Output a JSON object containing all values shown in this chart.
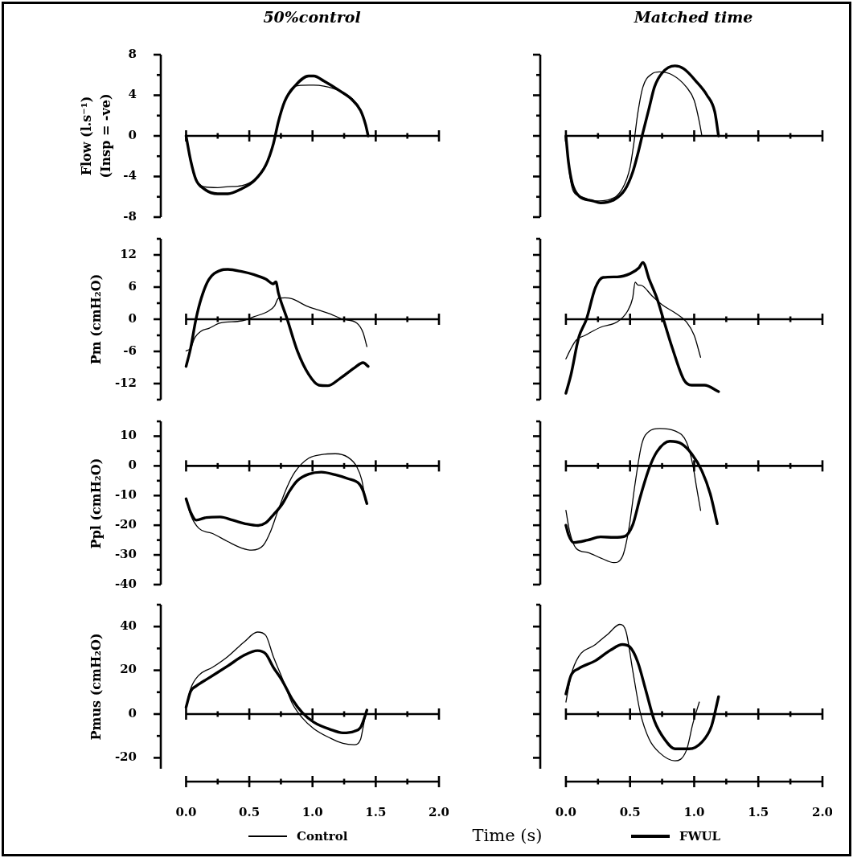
{
  "chart_data": [
    {
      "type": "line",
      "title": "50%control",
      "ylabel": "Flow (l.s⁻¹)\n(Insp = -ve)",
      "xlim": [
        -0.2,
        2
      ],
      "xticks": [
        0,
        {
          "value": 0.25,
          "label": null
        },
        0.5,
        {
          "value": 0.75,
          "label": null
        },
        1,
        {
          "value": 1.25,
          "label": null
        },
        1.5,
        {
          "value": 1.75,
          "label": null
        },
        2
      ],
      "ylim": [
        -8,
        8
      ],
      "yticks": [
        -8,
        {
          "value": -6,
          "label": null
        },
        -4,
        {
          "value": -2,
          "label": null
        },
        0,
        {
          "value": 2,
          "label": null
        },
        4,
        {
          "value": 6,
          "label": null
        },
        8
      ],
      "tick_labels": "y",
      "series": [
        {
          "color": "#000000",
          "x": [
            0,
            0.036,
            0.078,
            0.14,
            0.25,
            0.33,
            0.44,
            0.54,
            0.63,
            0.69,
            0.73,
            0.78,
            0.86,
            0.97,
            1.01,
            1.09,
            1.22,
            1.31,
            1.38,
            1.42,
            1.44
          ],
          "values": [
            0,
            -2.3,
            -4.2,
            -5.0,
            -5.1,
            -5.0,
            -4.9,
            -4.3,
            -2.8,
            -0.7,
            1.5,
            3.5,
            4.9,
            5.0,
            5.0,
            4.9,
            4.4,
            3.7,
            2.6,
            1.2,
            0
          ]
        },
        {
          "color": "#000000",
          "x": [
            0,
            0.036,
            0.078,
            0.14,
            0.25,
            0.33,
            0.44,
            0.54,
            0.63,
            0.69,
            0.73,
            0.78,
            0.86,
            0.97,
            1.01,
            1.09,
            1.22,
            1.31,
            1.38,
            1.42,
            1.44
          ],
          "values": [
            0,
            -2.4,
            -4.3,
            -5.2,
            -5.7,
            -5.7,
            -5.2,
            -4.4,
            -2.9,
            -0.8,
            1.4,
            3.4,
            4.9,
            5.9,
            5.9,
            5.4,
            4.4,
            3.6,
            2.5,
            1.1,
            0
          ]
        }
      ]
    },
    {
      "type": "line",
      "title": "Matched time",
      "xlim": [
        -0.2,
        2
      ],
      "xticks": [
        0,
        {
          "value": 0.25,
          "label": null
        },
        0.5,
        {
          "value": 0.75,
          "label": null
        },
        1,
        {
          "value": 1.25,
          "label": null
        },
        1.5,
        {
          "value": 1.75,
          "label": null
        },
        2
      ],
      "ylim": [
        -8,
        8
      ],
      "yticks": [
        -8,
        {
          "value": -6,
          "label": null
        },
        -4,
        {
          "value": -2,
          "label": null
        },
        0,
        {
          "value": 2,
          "label": null
        },
        4,
        {
          "value": 6,
          "label": null
        },
        8
      ],
      "tick_labels": false,
      "series": [
        {
          "color": "#000000",
          "x": [
            0,
            0.03,
            0.06,
            0.125,
            0.23,
            0.33,
            0.44,
            0.5,
            0.53,
            0.56,
            0.6,
            0.67,
            0.73,
            0.83,
            0.94,
            1.0,
            1.04,
            1.06
          ],
          "values": [
            0,
            -3.9,
            -5.5,
            -6.0,
            -6.4,
            -6.3,
            -5.2,
            -3.1,
            -0.7,
            2.2,
            4.8,
            6.1,
            6.3,
            6.0,
            4.8,
            3.5,
            1.4,
            0
          ]
        },
        {
          "color": "#000000",
          "x": [
            0,
            0.02,
            0.05,
            0.1,
            0.21,
            0.27,
            0.375,
            0.46,
            0.52,
            0.56,
            0.6,
            0.65,
            0.69,
            0.75,
            0.85,
            0.92,
            1.02,
            1.1,
            1.16,
            1.19
          ],
          "values": [
            0,
            -2.6,
            -4.7,
            -5.9,
            -6.4,
            -6.6,
            -6.3,
            -5.3,
            -3.6,
            -1.8,
            0.3,
            2.8,
            4.8,
            6.2,
            6.9,
            6.6,
            5.3,
            4.0,
            2.4,
            0
          ]
        }
      ]
    },
    {
      "type": "line",
      "ylabel": "Pm (cmH₂O)",
      "xlim": [
        -0.2,
        2
      ],
      "xticks": [
        0,
        {
          "value": 0.25,
          "label": null
        },
        0.5,
        {
          "value": 0.75,
          "label": null
        },
        1,
        {
          "value": 1.25,
          "label": null
        },
        1.5,
        {
          "value": 1.75,
          "label": null
        },
        2
      ],
      "ylim": [
        -15,
        15
      ],
      "yticks": [
        {
          "value": -15,
          "label": null
        },
        -12,
        {
          "value": -9,
          "label": null
        },
        -6,
        {
          "value": -3,
          "label": null
        },
        0,
        {
          "value": 3,
          "label": null
        },
        6,
        {
          "value": 9,
          "label": null
        },
        12,
        {
          "value": 15,
          "label": null
        }
      ],
      "tick_labels": "y",
      "series": [
        {
          "color": "#000000",
          "x": [
            0,
            0.036,
            0.07,
            0.12,
            0.18,
            0.27,
            0.44,
            0.54,
            0.65,
            0.7,
            0.73,
            0.78,
            0.84,
            0.95,
            1.05,
            1.14,
            1.24,
            1.35,
            1.4,
            1.43
          ],
          "values": [
            -5.9,
            -5.4,
            -3.4,
            -2.2,
            -1.7,
            -0.7,
            -0.3,
            0.5,
            1.5,
            2.5,
            3.9,
            4.0,
            3.8,
            2.5,
            1.7,
            1.0,
            0,
            -0.7,
            -2.5,
            -5.1
          ]
        },
        {
          "color": "#000000",
          "x": [
            0,
            0.036,
            0.078,
            0.12,
            0.18,
            0.27,
            0.33,
            0.44,
            0.54,
            0.63,
            0.69,
            0.71,
            0.73,
            0.8,
            0.88,
            0.97,
            1.05,
            1.12,
            1.22,
            1.33,
            1.4,
            1.44
          ],
          "values": [
            -8.8,
            -5.4,
            0,
            3.9,
            7.4,
            9.1,
            9.3,
            8.9,
            8.3,
            7.5,
            6.6,
            7.0,
            4.9,
            0,
            -5.9,
            -10.3,
            -12.3,
            -12.4,
            -11,
            -9.1,
            -8.1,
            -8.8
          ]
        }
      ]
    },
    {
      "type": "line",
      "xlim": [
        -0.2,
        2
      ],
      "xticks": [
        0,
        {
          "value": 0.25,
          "label": null
        },
        0.5,
        {
          "value": 0.75,
          "label": null
        },
        1,
        {
          "value": 1.25,
          "label": null
        },
        1.5,
        {
          "value": 1.75,
          "label": null
        },
        2
      ],
      "ylim": [
        -15,
        15
      ],
      "yticks": [
        {
          "value": -15,
          "label": null
        },
        -12,
        {
          "value": -9,
          "label": null
        },
        -6,
        {
          "value": -3,
          "label": null
        },
        0,
        {
          "value": 3,
          "label": null
        },
        6,
        {
          "value": 9,
          "label": null
        },
        12,
        {
          "value": 15,
          "label": null
        }
      ],
      "tick_labels": false,
      "series": [
        {
          "color": "#000000",
          "x": [
            0,
            0.03,
            0.08,
            0.15,
            0.27,
            0.4,
            0.48,
            0.52,
            0.54,
            0.56,
            0.59,
            0.67,
            0.75,
            0.85,
            0.94,
            1.0,
            1.05
          ],
          "values": [
            -7.4,
            -5.9,
            -3.9,
            -3.0,
            -1.5,
            -0.5,
            1.5,
            3.9,
            6.9,
            6.4,
            6.3,
            4.4,
            2.7,
            1.2,
            -0.5,
            -3.0,
            -7.1
          ]
        },
        {
          "color": "#000000",
          "x": [
            0,
            0.04,
            0.1,
            0.16,
            0.23,
            0.29,
            0.4,
            0.5,
            0.57,
            0.6,
            0.65,
            0.71,
            0.76,
            0.83,
            0.92,
            0.98,
            1.08,
            1.19
          ],
          "values": [
            -13.8,
            -10.3,
            -3.4,
            0,
            5.9,
            7.8,
            7.9,
            8.5,
            9.6,
            10.6,
            7.4,
            3.9,
            0,
            -5.4,
            -11.3,
            -12.3,
            -12.3,
            -13.5
          ]
        }
      ]
    },
    {
      "type": "line",
      "ylabel": "Ppl (cmH₂O)",
      "xlim": [
        -0.2,
        2
      ],
      "xticks": [
        0,
        {
          "value": 0.25,
          "label": null
        },
        0.5,
        {
          "value": 0.75,
          "label": null
        },
        1,
        {
          "value": 1.25,
          "label": null
        },
        1.5,
        {
          "value": 1.75,
          "label": null
        },
        2
      ],
      "ylim": [
        -40,
        15
      ],
      "yticks": [
        -40,
        {
          "value": -35,
          "label": null
        },
        -30,
        {
          "value": -25,
          "label": null
        },
        -20,
        {
          "value": -15,
          "label": null
        },
        -10,
        {
          "value": -5,
          "label": null
        },
        0,
        {
          "value": 5,
          "label": null
        },
        10,
        {
          "value": 15,
          "label": null
        }
      ],
      "tick_labels": "y",
      "series": [
        {
          "color": "#000000",
          "x": [
            0,
            0.036,
            0.1,
            0.21,
            0.33,
            0.44,
            0.52,
            0.61,
            0.67,
            0.73,
            0.8,
            0.86,
            0.97,
            1.07,
            1.18,
            1.28,
            1.35,
            1.39,
            1.42
          ],
          "values": [
            -11.1,
            -16.5,
            -21,
            -22.8,
            -25.5,
            -27.7,
            -28.4,
            -26.8,
            -21.9,
            -14.7,
            -7.0,
            -2.1,
            2.6,
            3.8,
            4.1,
            2.9,
            -0.3,
            -4.8,
            -12.0
          ]
        },
        {
          "color": "#000000",
          "x": [
            0,
            0.036,
            0.08,
            0.16,
            0.27,
            0.37,
            0.48,
            0.57,
            0.63,
            0.69,
            0.76,
            0.82,
            0.88,
            0.97,
            1.07,
            1.18,
            1.28,
            1.37,
            1.4,
            1.43
          ],
          "values": [
            -11.1,
            -15.6,
            -18.3,
            -17.4,
            -17.2,
            -18.3,
            -19.6,
            -20.1,
            -19.2,
            -16.5,
            -12.9,
            -8.4,
            -5.0,
            -2.8,
            -2.1,
            -3.0,
            -4.3,
            -6.1,
            -8.4,
            -12.7
          ]
        }
      ]
    },
    {
      "type": "line",
      "xlim": [
        -0.2,
        2
      ],
      "xticks": [
        0,
        {
          "value": 0.25,
          "label": null
        },
        0.5,
        {
          "value": 0.75,
          "label": null
        },
        1,
        {
          "value": 1.25,
          "label": null
        },
        1.5,
        {
          "value": 1.75,
          "label": null
        },
        2
      ],
      "ylim": [
        -40,
        15
      ],
      "yticks": [
        -40,
        {
          "value": -35,
          "label": null
        },
        -30,
        {
          "value": -25,
          "label": null
        },
        -20,
        {
          "value": -15,
          "label": null
        },
        -10,
        {
          "value": -5,
          "label": null
        },
        0,
        {
          "value": 5,
          "label": null
        },
        10,
        {
          "value": 15,
          "label": null
        }
      ],
      "tick_labels": false,
      "series": [
        {
          "color": "#000000",
          "x": [
            0,
            0.03,
            0.08,
            0.17,
            0.27,
            0.375,
            0.44,
            0.49,
            0.54,
            0.59,
            0.65,
            0.73,
            0.85,
            0.94,
            0.99,
            1.02,
            1.05
          ],
          "values": [
            -15,
            -22.3,
            -27.8,
            -29.2,
            -31,
            -32.6,
            -30.6,
            -21.4,
            -5.8,
            7.1,
            11.7,
            12.6,
            11.8,
            8.0,
            0.2,
            -7.6,
            -15
          ]
        },
        {
          "color": "#000000",
          "x": [
            0,
            0.02,
            0.06,
            0.17,
            0.27,
            0.375,
            0.46,
            0.52,
            0.58,
            0.65,
            0.71,
            0.81,
            0.9,
            0.98,
            1.06,
            1.125,
            1.18
          ],
          "values": [
            -20,
            -23.2,
            -25.8,
            -25,
            -23.9,
            -24.1,
            -23.7,
            -20,
            -10.4,
            -0.7,
            4.8,
            8.3,
            7.5,
            4.1,
            -1.7,
            -9.4,
            -19.5
          ]
        }
      ]
    },
    {
      "type": "line",
      "ylabel": "Pmus (cmH₂O)",
      "xlabel": "Time (s)",
      "legend": "bottom",
      "xlim": [
        -0.2,
        2
      ],
      "xticks": [
        {
          "value": 0,
          "label": "0.0"
        },
        {
          "value": 0.25,
          "label": null
        },
        {
          "value": 0.5,
          "label": "0.5"
        },
        {
          "value": 0.75,
          "label": null
        },
        {
          "value": 1,
          "label": "1.0"
        },
        {
          "value": 1.25,
          "label": null
        },
        {
          "value": 1.5,
          "label": "1.5"
        },
        {
          "value": 1.75,
          "label": null
        },
        {
          "value": 2,
          "label": "2.0"
        }
      ],
      "ylim": [
        -25,
        50
      ],
      "yticks": [
        -20,
        {
          "value": -10,
          "label": null
        },
        0,
        {
          "value": 10,
          "label": null
        },
        20,
        {
          "value": 30,
          "label": null
        },
        40,
        {
          "value": 50,
          "label": null
        }
      ],
      "series": [
        {
          "name": "Control",
          "color": "#000000",
          "x": [
            0,
            0.036,
            0.1,
            0.21,
            0.33,
            0.46,
            0.565,
            0.63,
            0.69,
            0.76,
            0.84,
            0.92,
            1.01,
            1.14,
            1.24,
            1.33,
            1.38,
            1.4,
            1.42
          ],
          "values": [
            3.1,
            11.6,
            17.7,
            21.4,
            26.3,
            33,
            37.5,
            36,
            26.3,
            16.5,
            4.9,
            -1.8,
            -6.7,
            -11,
            -13.4,
            -14,
            -11.6,
            -6.1,
            0
          ]
        },
        {
          "name": "FWUL",
          "color": "#000000",
          "x": [
            0,
            0.036,
            0.08,
            0.18,
            0.33,
            0.46,
            0.565,
            0.63,
            0.69,
            0.76,
            0.84,
            0.92,
            1.01,
            1.14,
            1.24,
            1.33,
            1.38,
            1.41,
            1.43
          ],
          "values": [
            3.1,
            10.4,
            12.8,
            16.5,
            22,
            26.9,
            29,
            27.5,
            21.4,
            15.3,
            6.7,
            0.6,
            -3.7,
            -7.0,
            -8.6,
            -7.9,
            -6.1,
            -1.8,
            1.8
          ]
        }
      ]
    },
    {
      "type": "line",
      "xlim": [
        -0.2,
        2
      ],
      "xticks": [
        {
          "value": 0,
          "label": "0.0"
        },
        {
          "value": 0.25,
          "label": null
        },
        {
          "value": 0.5,
          "label": "0.5"
        },
        {
          "value": 0.75,
          "label": null
        },
        {
          "value": 1,
          "label": "1.0"
        },
        {
          "value": 1.25,
          "label": null
        },
        {
          "value": 1.5,
          "label": "1.5"
        },
        {
          "value": 1.75,
          "label": null
        },
        {
          "value": 2,
          "label": "2.0"
        }
      ],
      "ylim": [
        -25,
        50
      ],
      "yticks": [
        -20,
        {
          "value": -10,
          "label": null
        },
        0,
        {
          "value": 10,
          "label": null
        },
        20,
        {
          "value": 30,
          "label": null
        },
        40,
        {
          "value": 50,
          "label": null
        }
      ],
      "tick_labels": "x",
      "series": [
        {
          "color": "#000000",
          "x": [
            0,
            0.04,
            0.1,
            0.23,
            0.33,
            0.42,
            0.47,
            0.52,
            0.58,
            0.65,
            0.73,
            0.85,
            0.94,
            0.99,
            1.04
          ],
          "values": [
            5.5,
            17.7,
            26.3,
            31.8,
            36.7,
            41,
            37.4,
            20.2,
            0.6,
            -11.6,
            -17.7,
            -21.4,
            -16.5,
            -4.3,
            5.5
          ]
        },
        {
          "color": "#000000",
          "x": [
            0,
            0.04,
            0.1,
            0.23,
            0.35,
            0.44,
            0.5,
            0.56,
            0.625,
            0.69,
            0.77,
            0.85,
            0.96,
            1.06,
            1.135,
            1.19
          ],
          "values": [
            9.2,
            17.7,
            20.8,
            24.4,
            29.3,
            31.8,
            30.6,
            23.8,
            10.4,
            -3.1,
            -11.6,
            -15.9,
            -15.9,
            -12.8,
            -5.5,
            7.9
          ]
        }
      ]
    }
  ]
}
